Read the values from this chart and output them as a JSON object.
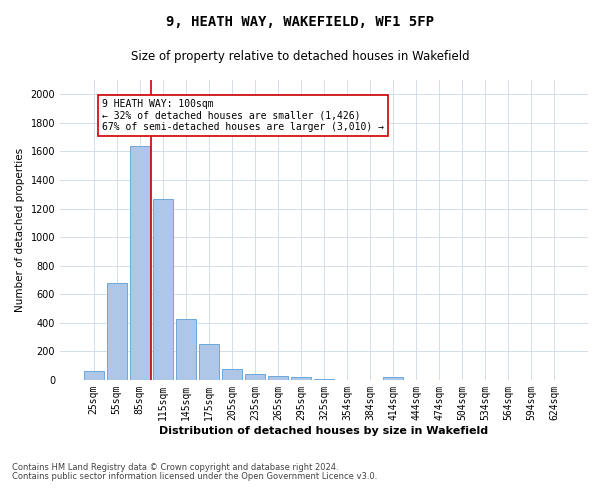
{
  "title1": "9, HEATH WAY, WAKEFIELD, WF1 5FP",
  "title2": "Size of property relative to detached houses in Wakefield",
  "xlabel": "Distribution of detached houses by size in Wakefield",
  "ylabel": "Number of detached properties",
  "categories": [
    "25sqm",
    "55sqm",
    "85sqm",
    "115sqm",
    "145sqm",
    "175sqm",
    "205sqm",
    "235sqm",
    "265sqm",
    "295sqm",
    "325sqm",
    "354sqm",
    "384sqm",
    "414sqm",
    "444sqm",
    "474sqm",
    "504sqm",
    "534sqm",
    "564sqm",
    "594sqm",
    "624sqm"
  ],
  "values": [
    60,
    680,
    1640,
    1270,
    430,
    250,
    80,
    45,
    25,
    20,
    10,
    0,
    0,
    22,
    0,
    0,
    0,
    0,
    0,
    0,
    0
  ],
  "bar_color": "#aec6e8",
  "bar_edge_color": "#5a9fd4",
  "vline_x": 2.5,
  "vline_color": "#cc0000",
  "annotation_text": "9 HEATH WAY: 100sqm\n← 32% of detached houses are smaller (1,426)\n67% of semi-detached houses are larger (3,010) →",
  "annotation_box_color": "#ffffff",
  "annotation_box_edge_color": "#cc0000",
  "ylim": [
    0,
    2100
  ],
  "yticks": [
    0,
    200,
    400,
    600,
    800,
    1000,
    1200,
    1400,
    1600,
    1800,
    2000
  ],
  "grid_color": "#d0d8e8",
  "background_color": "#ffffff",
  "footer1": "Contains HM Land Registry data © Crown copyright and database right 2024.",
  "footer2": "Contains public sector information licensed under the Open Government Licence v3.0.",
  "title1_fontsize": 10,
  "title2_fontsize": 8.5,
  "xlabel_fontsize": 8,
  "ylabel_fontsize": 7.5,
  "tick_fontsize": 7,
  "annotation_fontsize": 7,
  "footer_fontsize": 6
}
